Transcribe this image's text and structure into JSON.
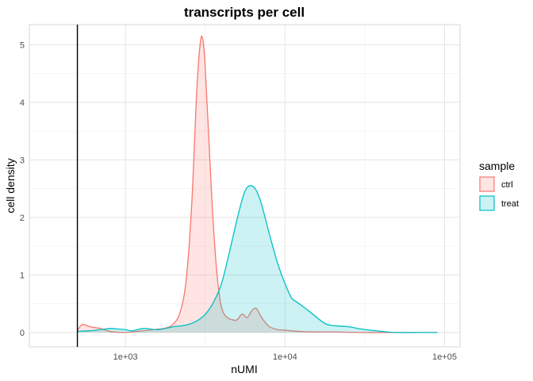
{
  "chart_data": {
    "type": "area",
    "title": "transcripts per cell",
    "xlabel": "nUMI",
    "ylabel": "cell density",
    "x_scale": "log10",
    "xlim": [
      250,
      125000
    ],
    "ylim": [
      -0.25,
      5.35
    ],
    "x_ticks": [
      {
        "value": 1000,
        "label": "1e+03"
      },
      {
        "value": 10000,
        "label": "1e+04"
      },
      {
        "value": 100000,
        "label": "1e+05"
      }
    ],
    "y_ticks": [
      {
        "value": 0,
        "label": "0"
      },
      {
        "value": 1,
        "label": "1"
      },
      {
        "value": 2,
        "label": "2"
      },
      {
        "value": 3,
        "label": "3"
      },
      {
        "value": 4,
        "label": "4"
      },
      {
        "value": 5,
        "label": "5"
      }
    ],
    "grid": true,
    "vline": {
      "x": 500
    },
    "legend": {
      "title": "sample",
      "position": "right"
    },
    "series": [
      {
        "name": "ctrl",
        "color": "#F8766D",
        "fill": "#F8766D",
        "x": [
          500,
          525,
          550,
          600,
          700,
          800,
          1000,
          1200,
          1500,
          1800,
          2000,
          2200,
          2400,
          2600,
          2800,
          2950,
          3050,
          3150,
          3300,
          3500,
          3700,
          3900,
          4100,
          4400,
          4700,
          5000,
          5400,
          5800,
          6200,
          6600,
          7000,
          7400,
          8000,
          9000,
          10000,
          12000,
          15000,
          20000,
          30000,
          50000,
          70000,
          90000
        ],
        "y": [
          0.03,
          0.12,
          0.14,
          0.1,
          0.07,
          0.02,
          0.0,
          0.02,
          0.05,
          0.08,
          0.15,
          0.35,
          0.9,
          2.2,
          4.2,
          5.05,
          5.1,
          4.7,
          3.6,
          2.2,
          1.2,
          0.6,
          0.35,
          0.25,
          0.22,
          0.22,
          0.32,
          0.26,
          0.38,
          0.42,
          0.3,
          0.2,
          0.1,
          0.05,
          0.04,
          0.02,
          0.01,
          0.01,
          0.0,
          0.0,
          0.0,
          0.0
        ]
      },
      {
        "name": "treat",
        "color": "#00BFC4",
        "fill": "#00BFC4",
        "x": [
          500,
          600,
          700,
          800,
          900,
          1000,
          1100,
          1300,
          1600,
          2000,
          2400,
          2800,
          3200,
          3600,
          4000,
          4400,
          4800,
          5200,
          5600,
          6000,
          6500,
          7000,
          7500,
          8000,
          9000,
          10000,
          11000,
          12000,
          14000,
          16000,
          18000,
          20000,
          25000,
          30000,
          40000,
          50000,
          70000,
          90000
        ],
        "y": [
          0.02,
          0.03,
          0.05,
          0.07,
          0.06,
          0.05,
          0.03,
          0.07,
          0.05,
          0.1,
          0.13,
          0.2,
          0.33,
          0.55,
          0.85,
          1.3,
          1.75,
          2.15,
          2.45,
          2.55,
          2.5,
          2.3,
          2.0,
          1.7,
          1.2,
          0.85,
          0.6,
          0.52,
          0.38,
          0.25,
          0.15,
          0.12,
          0.1,
          0.06,
          0.02,
          0.0,
          0.0,
          0.0
        ]
      }
    ]
  }
}
